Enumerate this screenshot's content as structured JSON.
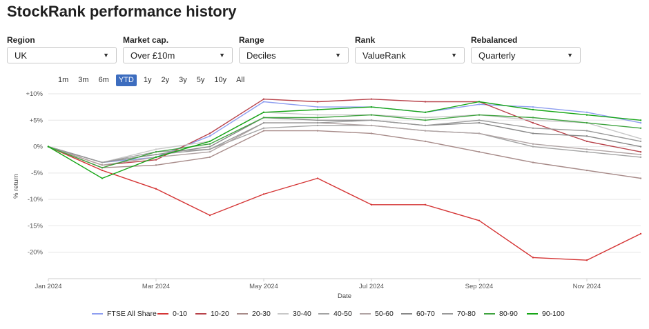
{
  "page": {
    "title": "StockRank performance history"
  },
  "filters": [
    {
      "label": "Region",
      "value": "UK"
    },
    {
      "label": "Market cap.",
      "value": "Over £10m"
    },
    {
      "label": "Range",
      "value": "Deciles"
    },
    {
      "label": "Rank",
      "value": "ValueRank"
    },
    {
      "label": "Rebalanced",
      "value": "Quarterly"
    }
  ],
  "range_buttons": [
    "1m",
    "3m",
    "6m",
    "YTD",
    "1y",
    "2y",
    "3y",
    "5y",
    "10y",
    "All"
  ],
  "active_range": "YTD",
  "icons": {
    "dropdown": "chevron-down-icon"
  },
  "colors": {
    "accent": "#3d6dbf"
  },
  "chart_data": {
    "type": "line",
    "title": "",
    "xlabel": "Date",
    "ylabel": "% return",
    "ylim": [
      -25,
      10
    ],
    "y_ticks": [
      10,
      5,
      0,
      -5,
      -10,
      -15,
      -20
    ],
    "y_tick_labels": [
      "+10%",
      "+5%",
      "0%",
      "-5%",
      "-10%",
      "-15%",
      "-20%"
    ],
    "x_ticks": [
      "Jan 2024",
      "Mar 2024",
      "May 2024",
      "Jul 2024",
      "Sep 2024",
      "Nov 2024"
    ],
    "x": [
      "Jan 2024",
      "Feb 2024",
      "Mar 2024",
      "Apr 2024",
      "May 2024",
      "Jun 2024",
      "Jul 2024",
      "Aug 2024",
      "Sep 2024",
      "Oct 2024",
      "Nov 2024",
      "Dec 2024"
    ],
    "legend_position": "bottom",
    "grid": true,
    "series": [
      {
        "name": "FTSE All Share",
        "color": "#8e9ef0",
        "values": [
          0,
          -3,
          -2,
          2,
          8.5,
          7.5,
          7.5,
          6.5,
          8,
          7.5,
          6.5,
          4.5
        ]
      },
      {
        "name": "0-10",
        "color": "#d53535",
        "values": [
          0,
          -4.5,
          -8,
          -13,
          -9,
          -6,
          -11,
          -11,
          -14,
          -21,
          -21.5,
          -16.5
        ]
      },
      {
        "name": "10-20",
        "color": "#b8424a",
        "values": [
          0,
          -3.5,
          -2.5,
          2.5,
          9,
          8.5,
          9,
          8.5,
          8.5,
          4.5,
          1,
          -1
        ]
      },
      {
        "name": "20-30",
        "color": "#a78b89",
        "values": [
          0,
          -4,
          -3.5,
          -2,
          3,
          3,
          2.5,
          1,
          -1,
          -3,
          -4.5,
          -6
        ]
      },
      {
        "name": "30-40",
        "color": "#c8c8c8",
        "values": [
          0,
          -3,
          -0.5,
          1,
          6.5,
          6,
          6,
          5.5,
          6,
          5,
          4.5,
          1.5
        ]
      },
      {
        "name": "40-50",
        "color": "#a3a3a3",
        "values": [
          0,
          -3,
          -1,
          -0.5,
          3.5,
          4,
          4,
          3,
          2.5,
          0,
          -1,
          -2
        ]
      },
      {
        "name": "50-60",
        "color": "#b0a4a4",
        "values": [
          0,
          -3.5,
          -2,
          -1,
          4.5,
          4.5,
          4,
          3,
          2.5,
          0.5,
          -0.5,
          -1.5
        ]
      },
      {
        "name": "60-70",
        "color": "#888888",
        "values": [
          0,
          -3,
          -1.5,
          0,
          5.5,
          5,
          5,
          4,
          4.5,
          2.5,
          2,
          0
        ]
      },
      {
        "name": "70-80",
        "color": "#999999",
        "values": [
          0,
          -3,
          -1.5,
          -0.5,
          4.5,
          4.5,
          5,
          4,
          5,
          3.5,
          3,
          1
        ]
      },
      {
        "name": "80-90",
        "color": "#3fa33f",
        "values": [
          0,
          -4,
          -1,
          0.5,
          5.5,
          5.5,
          6,
          5,
          6,
          5.5,
          4.5,
          3.5
        ]
      },
      {
        "name": "90-100",
        "color": "#16a616",
        "values": [
          0,
          -6,
          -2,
          1,
          6.5,
          7,
          7.5,
          6.5,
          8.5,
          7,
          6,
          5
        ]
      }
    ]
  }
}
